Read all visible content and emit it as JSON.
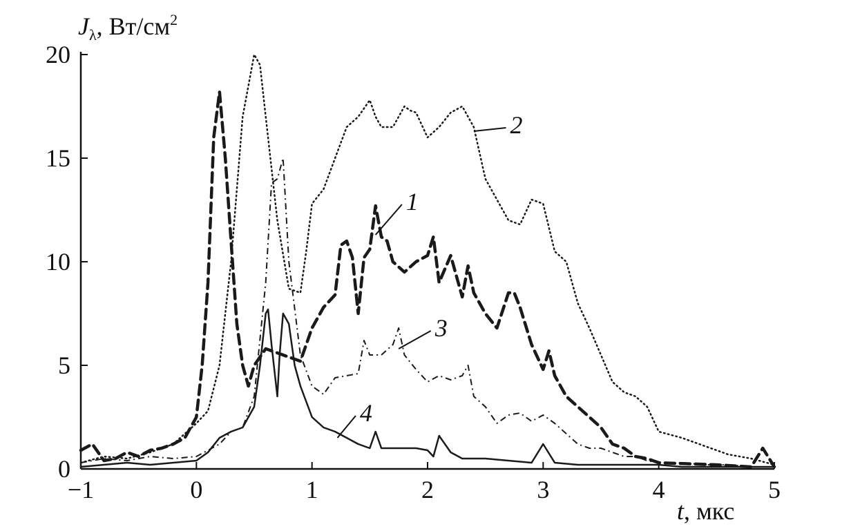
{
  "chart_data": {
    "type": "line",
    "ylabel_symbol": "J",
    "ylabel_sub": "λ",
    "ylabel_unit": ", Вт/см",
    "ylabel_sup": "2",
    "xlabel_symbol": "t",
    "xlabel_unit": ", мкс",
    "xlim": [
      -1,
      5
    ],
    "ylim": [
      0,
      20
    ],
    "xticks": [
      -1,
      0,
      1,
      2,
      3,
      4,
      5
    ],
    "xtick_labels": [
      "−1",
      "0",
      "1",
      "2",
      "3",
      "4",
      "5"
    ],
    "yticks": [
      0,
      5,
      10,
      15,
      20
    ],
    "ytick_labels": [
      "0",
      "5",
      "10",
      "15",
      "20"
    ],
    "grid": false,
    "legend": "none",
    "series": [
      {
        "name": "1",
        "style": "dashed",
        "x": [
          -1.0,
          -0.9,
          -0.8,
          -0.7,
          -0.6,
          -0.5,
          -0.4,
          -0.3,
          -0.2,
          -0.1,
          0.0,
          0.05,
          0.1,
          0.15,
          0.2,
          0.25,
          0.3,
          0.35,
          0.4,
          0.45,
          0.5,
          0.6,
          0.7,
          0.8,
          0.9,
          1.0,
          1.1,
          1.2,
          1.25,
          1.3,
          1.35,
          1.4,
          1.45,
          1.5,
          1.55,
          1.6,
          1.65,
          1.7,
          1.8,
          1.9,
          2.0,
          2.05,
          2.1,
          2.2,
          2.3,
          2.35,
          2.4,
          2.5,
          2.6,
          2.7,
          2.75,
          2.8,
          2.9,
          3.0,
          3.05,
          3.1,
          3.2,
          3.3,
          3.4,
          3.5,
          3.6,
          3.7,
          3.8,
          3.9,
          4.0,
          4.5,
          4.8,
          4.9,
          5.0
        ],
        "y": [
          0.9,
          1.2,
          0.4,
          0.5,
          0.8,
          0.6,
          0.9,
          1.0,
          1.2,
          1.5,
          2.5,
          5.0,
          9.0,
          16.0,
          18.2,
          15.0,
          11.0,
          7.0,
          5.0,
          4.0,
          5.0,
          5.8,
          5.6,
          5.4,
          5.2,
          6.8,
          7.8,
          8.4,
          10.8,
          11.0,
          10.2,
          7.5,
          10.2,
          10.6,
          12.7,
          11.2,
          11.0,
          10.0,
          9.5,
          10.0,
          10.3,
          11.2,
          9.0,
          10.3,
          8.3,
          9.8,
          8.5,
          7.5,
          6.8,
          8.5,
          8.5,
          7.8,
          6.0,
          4.8,
          5.7,
          4.5,
          3.5,
          3.0,
          2.5,
          2.0,
          1.2,
          1.0,
          0.6,
          0.5,
          0.3,
          0.2,
          0.1,
          1.0,
          0.1
        ]
      },
      {
        "name": "2",
        "style": "dotted",
        "x": [
          -1.0,
          -0.8,
          -0.6,
          -0.4,
          -0.2,
          0.0,
          0.1,
          0.2,
          0.3,
          0.4,
          0.5,
          0.55,
          0.6,
          0.7,
          0.8,
          0.9,
          0.95,
          1.0,
          1.1,
          1.2,
          1.3,
          1.4,
          1.45,
          1.5,
          1.55,
          1.6,
          1.7,
          1.8,
          1.85,
          1.9,
          2.0,
          2.1,
          2.2,
          2.3,
          2.35,
          2.4,
          2.5,
          2.6,
          2.7,
          2.8,
          2.9,
          3.0,
          3.1,
          3.2,
          3.3,
          3.4,
          3.5,
          3.6,
          3.7,
          3.8,
          3.9,
          4.0,
          4.2,
          4.4,
          4.6,
          4.8,
          5.0
        ],
        "y": [
          0.3,
          0.6,
          0.5,
          0.8,
          1.2,
          2.2,
          2.8,
          5.0,
          10.0,
          17.0,
          20.0,
          19.5,
          17.0,
          12.0,
          8.7,
          8.5,
          10.5,
          12.8,
          13.5,
          15.0,
          16.5,
          17.0,
          17.4,
          17.8,
          17.0,
          16.5,
          16.5,
          17.5,
          17.3,
          17.2,
          16.0,
          16.5,
          17.2,
          17.5,
          17.0,
          16.5,
          14.0,
          13.0,
          12.0,
          11.8,
          13.0,
          12.8,
          10.5,
          10.0,
          8.0,
          6.8,
          5.5,
          4.2,
          3.7,
          3.5,
          3.0,
          1.8,
          1.5,
          1.1,
          0.7,
          0.5,
          0.2
        ]
      },
      {
        "name": "3",
        "style": "dash-dot",
        "x": [
          -1.0,
          -0.8,
          -0.6,
          -0.4,
          -0.2,
          0.0,
          0.1,
          0.2,
          0.3,
          0.4,
          0.5,
          0.6,
          0.65,
          0.7,
          0.75,
          0.8,
          0.9,
          1.0,
          1.1,
          1.2,
          1.3,
          1.4,
          1.45,
          1.5,
          1.6,
          1.7,
          1.75,
          1.8,
          1.9,
          2.0,
          2.1,
          2.2,
          2.3,
          2.35,
          2.4,
          2.5,
          2.6,
          2.7,
          2.8,
          2.9,
          3.0,
          3.1,
          3.2,
          3.3,
          3.4,
          3.5,
          3.6,
          3.7,
          3.8,
          3.9,
          4.0,
          4.2,
          4.4,
          4.6,
          4.8,
          5.0
        ],
        "y": [
          0.3,
          0.5,
          0.4,
          0.6,
          0.5,
          0.6,
          0.9,
          1.2,
          1.8,
          2.0,
          3.5,
          9.0,
          13.8,
          14.0,
          15.0,
          10.0,
          5.5,
          4.0,
          3.6,
          4.4,
          4.5,
          4.6,
          6.2,
          5.5,
          5.5,
          6.0,
          6.8,
          5.5,
          4.8,
          4.2,
          4.5,
          4.3,
          4.5,
          5.0,
          3.5,
          3.0,
          2.2,
          2.6,
          2.7,
          2.3,
          2.6,
          2.2,
          1.7,
          1.2,
          1.0,
          1.0,
          0.8,
          0.6,
          0.6,
          0.4,
          0.3,
          0.3,
          0.2,
          0.2,
          0.1,
          0.1
        ]
      },
      {
        "name": "4",
        "style": "solid",
        "x": [
          -1.0,
          -0.8,
          -0.6,
          -0.4,
          -0.2,
          0.0,
          0.1,
          0.2,
          0.3,
          0.4,
          0.5,
          0.55,
          0.6,
          0.62,
          0.65,
          0.7,
          0.72,
          0.75,
          0.78,
          0.8,
          0.85,
          0.9,
          1.0,
          1.1,
          1.2,
          1.3,
          1.4,
          1.5,
          1.55,
          1.6,
          1.7,
          1.8,
          1.9,
          2.0,
          2.05,
          2.1,
          2.2,
          2.3,
          2.5,
          2.7,
          2.9,
          3.0,
          3.1,
          3.3,
          3.5,
          3.7,
          3.9,
          4.0,
          4.2,
          4.5,
          4.8,
          5.0
        ],
        "y": [
          0.1,
          0.2,
          0.3,
          0.2,
          0.3,
          0.4,
          0.8,
          1.5,
          1.8,
          2.0,
          3.0,
          5.0,
          7.5,
          7.7,
          6.0,
          3.5,
          5.5,
          7.5,
          7.2,
          7.0,
          5.0,
          4.0,
          2.5,
          2.0,
          1.8,
          1.5,
          1.2,
          1.0,
          1.8,
          1.0,
          1.0,
          1.0,
          1.0,
          0.9,
          0.6,
          1.6,
          0.8,
          0.5,
          0.5,
          0.4,
          0.3,
          1.2,
          0.3,
          0.2,
          0.2,
          0.2,
          0.2,
          0.2,
          0.1,
          0.1,
          0.1,
          0.1
        ]
      }
    ]
  }
}
